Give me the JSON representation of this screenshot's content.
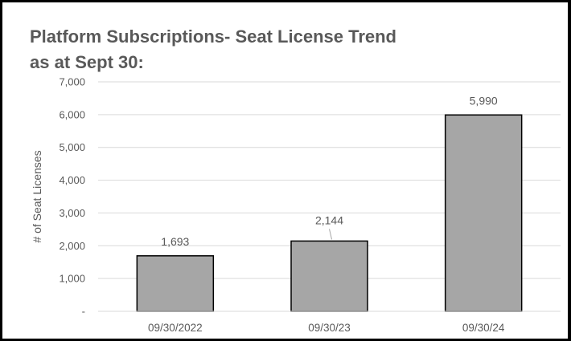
{
  "chart_data": {
    "type": "bar",
    "title_lines": [
      "Platform Subscriptions- Seat License Trend",
      "as at Sept 30:"
    ],
    "categories": [
      "09/30/2022",
      "09/30/23",
      "09/30/24"
    ],
    "values": [
      1693,
      2144,
      5990
    ],
    "value_labels": [
      "1,693",
      "2,144",
      "5,990"
    ],
    "ylabel": "# of Seat Licenses",
    "xlabel": "",
    "ylim": [
      0,
      7000
    ],
    "yticks": [
      0,
      1000,
      2000,
      3000,
      4000,
      5000,
      6000,
      7000
    ],
    "ytick_labels": [
      "-",
      "1,000",
      "2,000",
      "3,000",
      "4,000",
      "5,000",
      "6,000",
      "7,000"
    ],
    "grid": true,
    "legend": "none",
    "colors": {
      "bar_fill": "#a6a6a6",
      "bar_stroke": "#000000",
      "gridline": "#d9d9d9",
      "text": "#595959",
      "border": "#000000"
    }
  }
}
